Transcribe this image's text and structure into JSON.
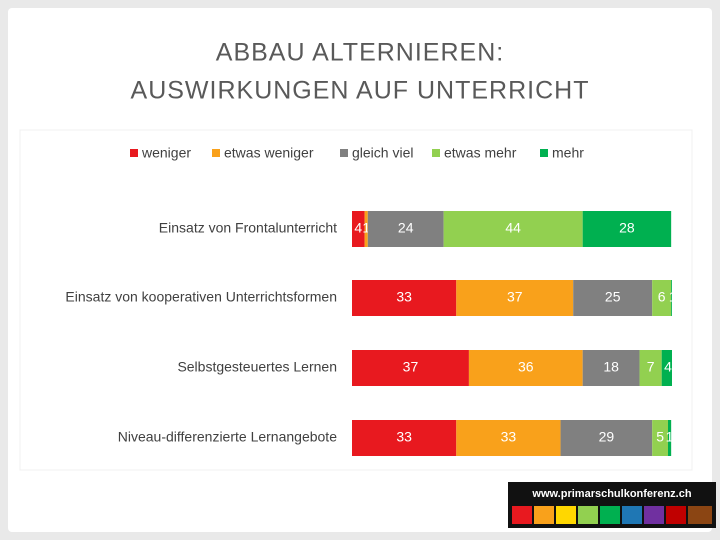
{
  "chart_data": {
    "type": "stacked-barh",
    "title_lines": [
      "ABBAU ALTERNIEREN:",
      "AUSWIRKUNGEN AUF UNTERRICHT"
    ],
    "categories": [
      "Einsatz von Frontalunterricht",
      "Einsatz von kooperativen Unterrichtsformen",
      "Selbstgesteuertes Lernen",
      "Niveau-differenzierte Lernangebote"
    ],
    "series": [
      {
        "name": "weniger",
        "color": "#e8191f",
        "values": [
          4,
          33,
          37,
          33
        ]
      },
      {
        "name": "etwas weniger",
        "color": "#f9a11b",
        "values": [
          1,
          37,
          36,
          33
        ]
      },
      {
        "name": "gleich viel",
        "color": "#808080",
        "values": [
          24,
          25,
          18,
          29
        ]
      },
      {
        "name": "etwas mehr",
        "color": "#92d050",
        "values": [
          44,
          6,
          7,
          5
        ]
      },
      {
        "name": "mehr",
        "color": "#00b050",
        "values": [
          28,
          1,
          4,
          1
        ]
      }
    ],
    "xlim": [
      0,
      100
    ],
    "legend": "top",
    "footer_logo": "www.primarschulkonferenz.ch"
  }
}
